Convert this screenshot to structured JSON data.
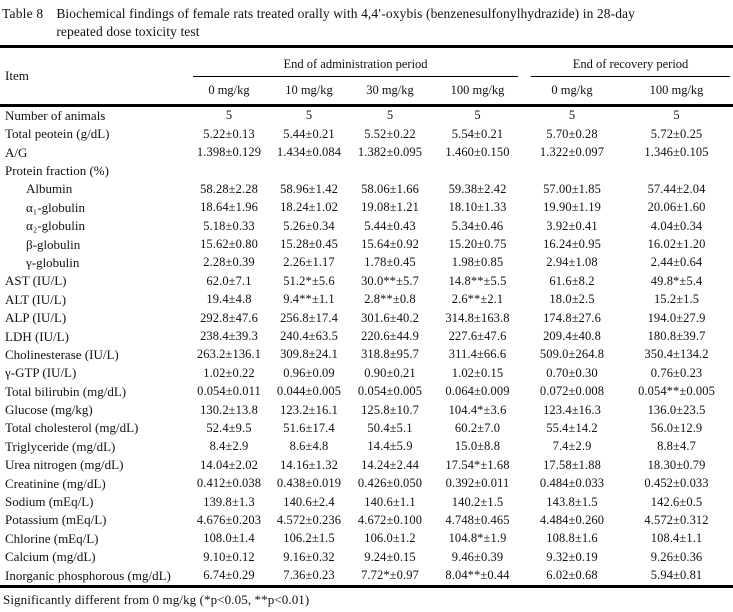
{
  "title": {
    "label": "Table 8",
    "caption": "Biochemical findings of female rats treated orally with 4,4′-oxybis (benzenesulfonylhydrazide) in 28-day\nrepeated dose toxicity test"
  },
  "table": {
    "item_header": "Item",
    "group_headers": {
      "administration": "End of administration period",
      "recovery": "End of recovery period"
    },
    "dose_headers": [
      "0 mg/kg",
      "10 mg/kg",
      "30 mg/kg",
      "100 mg/kg",
      "0 mg/kg",
      "100 mg/kg"
    ],
    "rows": [
      {
        "label": "Number of animals",
        "values": [
          "5",
          "5",
          "5",
          "5",
          "5",
          "5"
        ]
      },
      {
        "label": "Total peotein (g/dL)",
        "values": [
          "5.22±0.13",
          "5.44±0.21",
          "5.52±0.22",
          "5.54±0.21",
          "5.70±0.28",
          "5.72±0.25"
        ]
      },
      {
        "label": "A/G",
        "values": [
          "1.398±0.129",
          "1.434±0.084",
          "1.382±0.095",
          "1.460±0.150",
          "1.322±0.097",
          "1.346±0.105"
        ]
      },
      {
        "label": "Protein fraction (%)",
        "section": true,
        "values": [
          "",
          "",
          "",
          "",
          "",
          ""
        ]
      },
      {
        "label": "Albumin",
        "indent": true,
        "values": [
          "58.28±2.28",
          "58.96±1.42",
          "58.06±1.66",
          "59.38±2.42",
          "57.00±1.85",
          "57.44±2.04"
        ]
      },
      {
        "label": "α₁-globulin",
        "indent": true,
        "values": [
          "18.64±1.96",
          "18.24±1.02",
          "19.08±1.21",
          "18.10±1.33",
          "19.90±1.19",
          "20.06±1.60"
        ]
      },
      {
        "label": "α₂-globulin",
        "indent": true,
        "values": [
          "5.18±0.33",
          "5.26±0.34",
          "5.44±0.43",
          "5.34±0.46",
          "3.92±0.41",
          "4.04±0.34"
        ]
      },
      {
        "label": "β-globulin",
        "indent": true,
        "values": [
          "15.62±0.80",
          "15.28±0.45",
          "15.64±0.92",
          "15.20±0.75",
          "16.24±0.95",
          "16.02±1.20"
        ]
      },
      {
        "label": "γ-globulin",
        "indent": true,
        "values": [
          "2.28±0.39",
          "2.26±1.17",
          "1.78±0.45",
          "1.98±0.85",
          "2.94±1.08",
          "2.44±0.64"
        ]
      },
      {
        "label": "AST (IU/L)",
        "values": [
          "62.0±7.1",
          "51.2*±5.6",
          "30.0**±5.7",
          "14.8**±5.5",
          "61.6±8.2",
          "49.8*±5.4"
        ]
      },
      {
        "label": "ALT (IU/L)",
        "values": [
          "19.4±4.8",
          "9.4**±1.1",
          "2.8**±0.8",
          "2.6**±2.1",
          "18.0±2.5",
          "15.2±1.5"
        ]
      },
      {
        "label": "ALP (IU/L)",
        "values": [
          "292.8±47.6",
          "256.8±17.4",
          "301.6±40.2",
          "314.8±163.8",
          "174.8±27.6",
          "194.0±27.9"
        ]
      },
      {
        "label": "LDH (IU/L)",
        "values": [
          "238.4±39.3",
          "240.4±63.5",
          "220.6±44.9",
          "227.6±47.6",
          "209.4±40.8",
          "180.8±39.7"
        ]
      },
      {
        "label": "Cholinesterase (IU/L)",
        "values": [
          "263.2±136.1",
          "309.8±24.1",
          "318.8±95.7",
          "311.4±66.6",
          "509.0±264.8",
          "350.4±134.2"
        ]
      },
      {
        "label": "γ-GTP (IU/L)",
        "values": [
          "1.02±0.22",
          "0.96±0.09",
          "0.90±0.21",
          "1.02±0.15",
          "0.70±0.30",
          "0.76±0.23"
        ]
      },
      {
        "label": "Total bilirubin (mg/dL)",
        "values": [
          "0.054±0.011",
          "0.044±0.005",
          "0.054±0.005",
          "0.064±0.009",
          "0.072±0.008",
          "0.054**±0.005"
        ]
      },
      {
        "label": "Glucose (mg/kg)",
        "values": [
          "130.2±13.8",
          "123.2±16.1",
          "125.8±10.7",
          "104.4*±3.6",
          "123.4±16.3",
          "136.0±23.5"
        ]
      },
      {
        "label": "Total cholesterol (mg/dL)",
        "values": [
          "52.4±9.5",
          "51.6±17.4",
          "50.4±5.1",
          "60.2±7.0",
          "55.4±14.2",
          "56.0±12.9"
        ]
      },
      {
        "label": "Triglyceride (mg/dL)",
        "values": [
          "8.4±2.9",
          "8.6±4.8",
          "14.4±5.9",
          "15.0±8.8",
          "7.4±2.9",
          "8.8±4.7"
        ]
      },
      {
        "label": "Urea nitrogen (mg/dL)",
        "values": [
          "14.04±2.02",
          "14.16±1.32",
          "14.24±2.44",
          "17.54*±1.68",
          "17.58±1.88",
          "18.30±0.79"
        ]
      },
      {
        "label": "Creatinine (mg/dL)",
        "values": [
          "0.412±0.038",
          "0.438±0.019",
          "0.426±0.050",
          "0.392±0.011",
          "0.484±0.033",
          "0.452±0.033"
        ]
      },
      {
        "label": "Sodium (mEq/L)",
        "values": [
          "139.8±1.3",
          "140.6±2.4",
          "140.6±1.1",
          "140.2±1.5",
          "143.8±1.5",
          "142.6±0.5"
        ]
      },
      {
        "label": "Potassium (mEq/L)",
        "values": [
          "4.676±0.203",
          "4.572±0.236",
          "4.672±0.100",
          "4.748±0.465",
          "4.484±0.260",
          "4.572±0.312"
        ]
      },
      {
        "label": "Chlorine (mEq/L)",
        "values": [
          "108.0±1.4",
          "106.2±1.5",
          "106.0±1.2",
          "104.8*±1.9",
          "108.8±1.6",
          "108.4±1.1"
        ]
      },
      {
        "label": "Calcium (mg/dL)",
        "values": [
          "9.10±0.12",
          "9.16±0.32",
          "9.24±0.15",
          "9.46±0.39",
          "9.32±0.19",
          "9.26±0.36"
        ]
      },
      {
        "label": "Inorganic phosphorous (mg/dL)",
        "values": [
          "6.74±0.29",
          "7.36±0.23",
          "7.72*±0.97",
          "8.04**±0.44",
          "6.02±0.68",
          "5.94±0.81"
        ]
      }
    ]
  },
  "footnote": "Significantly different from 0 mg/kg (*p<0.05, **p<0.01)"
}
